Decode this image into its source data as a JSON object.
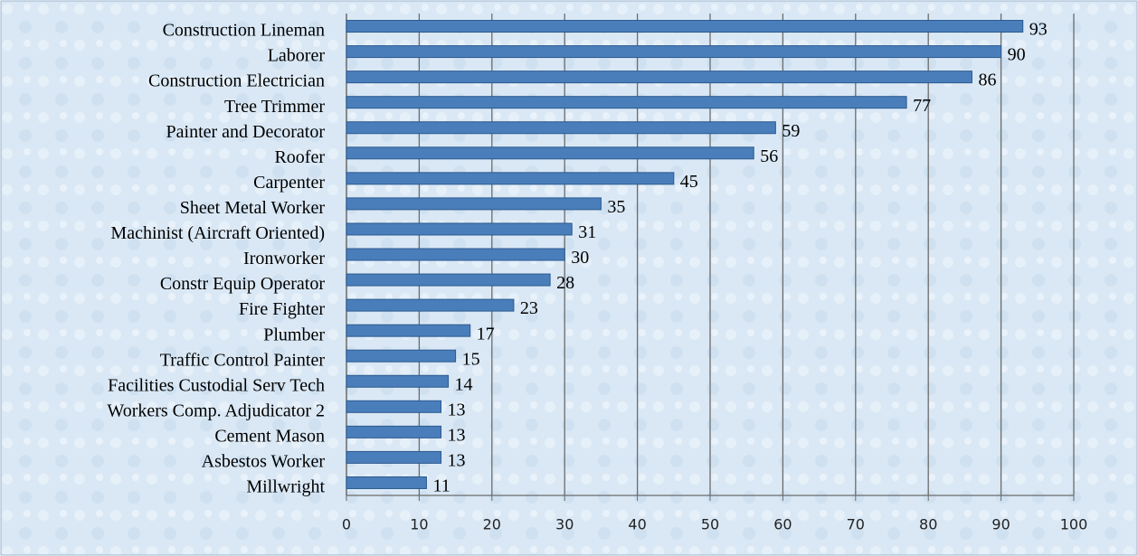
{
  "chart_data": {
    "type": "bar",
    "orientation": "horizontal",
    "categories": [
      "Construction Lineman",
      "Laborer",
      "Construction Electrician",
      "Tree Trimmer",
      "Painter and Decorator",
      "Roofer",
      "Carpenter",
      "Sheet Metal Worker",
      "Machinist (Aircraft Oriented)",
      "Ironworker",
      "Constr Equip Operator",
      "Fire Fighter",
      "Plumber",
      "Traffic Control Painter",
      "Facilities Custodial Serv Tech",
      "Workers Comp. Adjudicator 2",
      "Cement Mason",
      "Asbestos Worker",
      "Millwright"
    ],
    "values": [
      93,
      90,
      86,
      77,
      59,
      56,
      45,
      35,
      31,
      30,
      28,
      23,
      17,
      15,
      14,
      13,
      13,
      13,
      11
    ],
    "color": "#4a7ebb",
    "xlim": [
      0,
      100
    ],
    "xticks": [
      0,
      10,
      20,
      30,
      40,
      50,
      60,
      70,
      80,
      90,
      100
    ],
    "grid": true
  }
}
